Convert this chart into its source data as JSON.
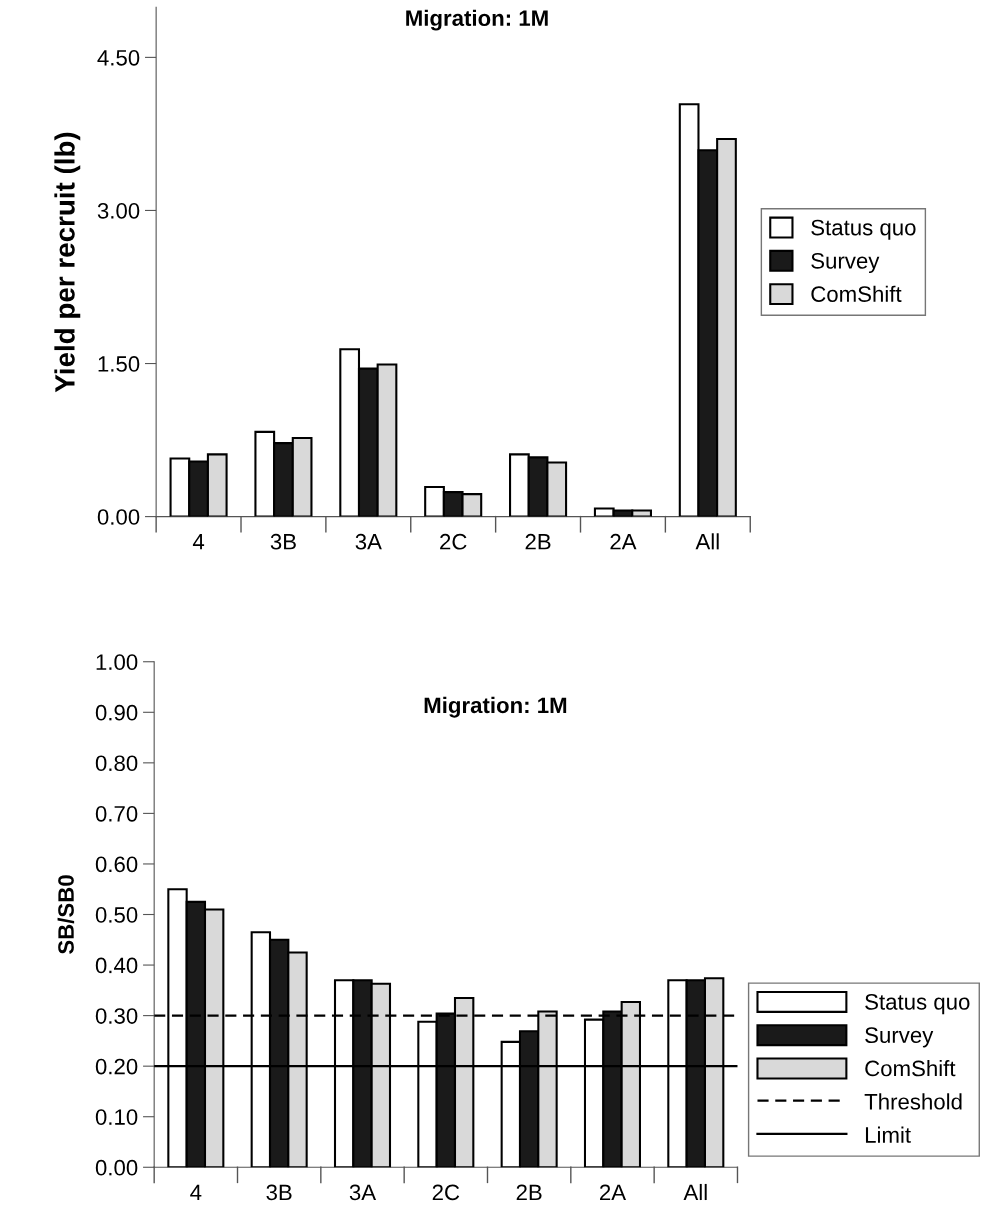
{
  "chart_data": [
    {
      "type": "bar",
      "title": "Migration: 1M",
      "ylabel": "Yield per recruit (lb)",
      "categories": [
        "4",
        "3B",
        "3A",
        "2C",
        "2B",
        "2A",
        "All"
      ],
      "series": [
        {
          "name": "Status quo",
          "color": "#ffffff",
          "values": [
            0.57,
            0.83,
            1.64,
            0.29,
            0.61,
            0.08,
            4.04
          ]
        },
        {
          "name": "Survey",
          "color": "#1a1a1a",
          "values": [
            0.54,
            0.72,
            1.45,
            0.24,
            0.58,
            0.06,
            3.59
          ]
        },
        {
          "name": "ComShift",
          "color": "#d9d9d9",
          "values": [
            0.61,
            0.77,
            1.49,
            0.22,
            0.53,
            0.06,
            3.7
          ]
        }
      ],
      "ylim": [
        0,
        4.99
      ],
      "yticks": [
        {
          "value": 0,
          "label": "0.00"
        },
        {
          "value": 1.5,
          "label": "1.50"
        },
        {
          "value": 3,
          "label": "3.00"
        },
        {
          "value": 4.5,
          "label": "4.50"
        }
      ],
      "legend": "right"
    },
    {
      "type": "bar",
      "title": "Migration: 1M",
      "ylabel": "SB/SB0",
      "categories": [
        "4",
        "3B",
        "3A",
        "2C",
        "2B",
        "2A",
        "All"
      ],
      "series": [
        {
          "name": "Status quo",
          "color": "#ffffff",
          "values": [
            0.55,
            0.465,
            0.37,
            0.288,
            0.248,
            0.292,
            0.37
          ]
        },
        {
          "name": "Survey",
          "color": "#1a1a1a",
          "values": [
            0.525,
            0.45,
            0.37,
            0.304,
            0.269,
            0.308,
            0.37
          ]
        },
        {
          "name": "ComShift",
          "color": "#d9d9d9",
          "values": [
            0.51,
            0.425,
            0.363,
            0.335,
            0.308,
            0.327,
            0.374
          ]
        }
      ],
      "ylim": [
        0,
        1.0
      ],
      "yticks": [
        {
          "value": 0,
          "label": "0.00"
        },
        {
          "value": 0.1,
          "label": "0.10"
        },
        {
          "value": 0.2,
          "label": "0.20"
        },
        {
          "value": 0.3,
          "label": "0.30"
        },
        {
          "value": 0.4,
          "label": "0.40"
        },
        {
          "value": 0.5,
          "label": "0.50"
        },
        {
          "value": 0.6,
          "label": "0.60"
        },
        {
          "value": 0.7,
          "label": "0.70"
        },
        {
          "value": 0.8,
          "label": "0.80"
        },
        {
          "value": 0.9,
          "label": "0.90"
        },
        {
          "value": 1.0,
          "label": "1.00"
        }
      ],
      "ref_lines": [
        {
          "axis": "y",
          "value": 0.3,
          "label": "Threshold",
          "color": "#000000",
          "line_style": "dashed"
        },
        {
          "axis": "y",
          "value": 0.2,
          "label": "Limit",
          "color": "#000000",
          "line_style": "solid"
        }
      ],
      "legend": "lower right"
    }
  ]
}
